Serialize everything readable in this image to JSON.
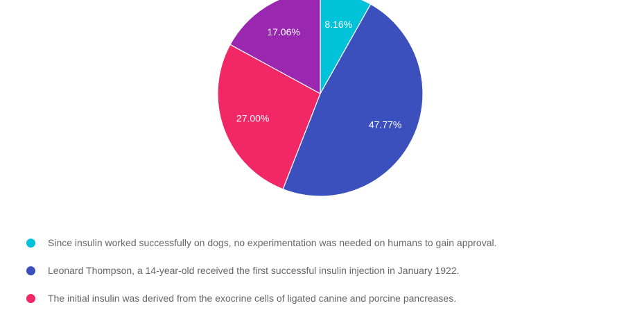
{
  "chart_data": {
    "type": "pie",
    "start_angle_deg": 0,
    "direction": "clockwise",
    "slices": [
      {
        "label": "Since insulin worked successfully on dogs, no experimentation was needed on humans to gain approval.",
        "value": 8.16,
        "display": "8.16%",
        "color": "#00C3DA"
      },
      {
        "label": "Leonard Thompson, a 14-year-old received the first successful insulin injection in January 1922.",
        "value": 47.77,
        "display": "47.77%",
        "color": "#3B50BD"
      },
      {
        "label": "The initial insulin was derived from the exocrine cells of ligated canine and porcine pancreases.",
        "value": 27.0,
        "display": "27.00%",
        "color": "#F12766"
      },
      {
        "label": "",
        "value": 17.06,
        "display": "17.06%",
        "color": "#9A27B0"
      }
    ],
    "legend_position": "bottom"
  }
}
